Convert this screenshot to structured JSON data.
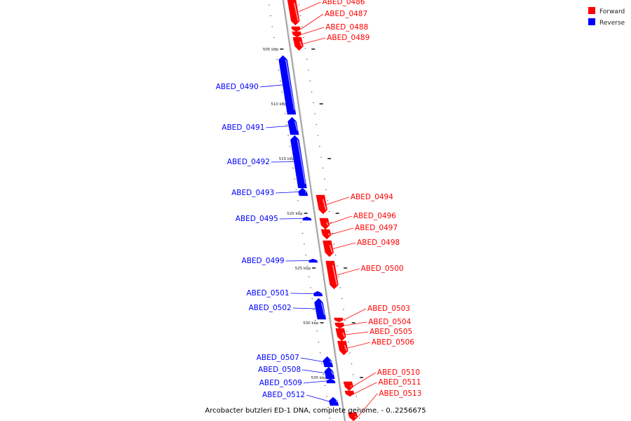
{
  "caption": "Arcobacter butzleri ED-1 DNA, complete genome. - 0..2256675",
  "legend": [
    {
      "label": "Forward",
      "color": "#ff0000"
    },
    {
      "label": "Reverse",
      "color": "#0000ff"
    }
  ],
  "colors": {
    "forward": "#ff0000",
    "reverse": "#0000ff",
    "backbone": "#888888"
  },
  "ticks": [
    "505 kbp",
    "510 kbp",
    "515 kbp",
    "520 kbp",
    "525 kbp",
    "530 kbp",
    "535 kbp"
  ],
  "genes": [
    {
      "name": "ABED_0486",
      "strand": "forward"
    },
    {
      "name": "ABED_0487",
      "strand": "forward"
    },
    {
      "name": "ABED_0488",
      "strand": "forward"
    },
    {
      "name": "ABED_0489",
      "strand": "forward"
    },
    {
      "name": "ABED_0490",
      "strand": "reverse"
    },
    {
      "name": "ABED_0491",
      "strand": "reverse"
    },
    {
      "name": "ABED_0492",
      "strand": "reverse"
    },
    {
      "name": "ABED_0493",
      "strand": "reverse"
    },
    {
      "name": "ABED_0494",
      "strand": "forward"
    },
    {
      "name": "ABED_0495",
      "strand": "reverse"
    },
    {
      "name": "ABED_0496",
      "strand": "forward"
    },
    {
      "name": "ABED_0497",
      "strand": "forward"
    },
    {
      "name": "ABED_0498",
      "strand": "forward"
    },
    {
      "name": "ABED_0499",
      "strand": "reverse"
    },
    {
      "name": "ABED_0500",
      "strand": "forward"
    },
    {
      "name": "ABED_0501",
      "strand": "reverse"
    },
    {
      "name": "ABED_0502",
      "strand": "reverse"
    },
    {
      "name": "ABED_0503",
      "strand": "forward"
    },
    {
      "name": "ABED_0504",
      "strand": "forward"
    },
    {
      "name": "ABED_0505",
      "strand": "forward"
    },
    {
      "name": "ABED_0506",
      "strand": "forward"
    },
    {
      "name": "ABED_0507",
      "strand": "reverse"
    },
    {
      "name": "ABED_0508",
      "strand": "reverse"
    },
    {
      "name": "ABED_0509",
      "strand": "reverse"
    },
    {
      "name": "ABED_0510",
      "strand": "forward"
    },
    {
      "name": "ABED_0511",
      "strand": "forward"
    },
    {
      "name": "ABED_0512",
      "strand": "reverse"
    },
    {
      "name": "ABED_0513",
      "strand": "forward"
    }
  ]
}
